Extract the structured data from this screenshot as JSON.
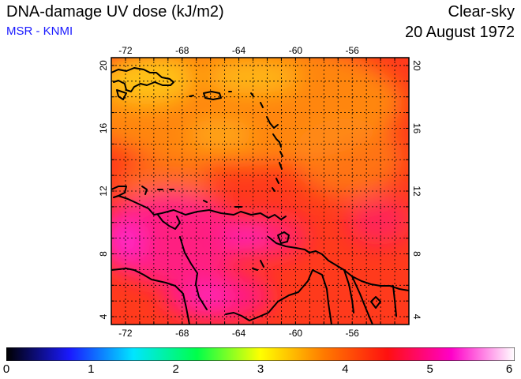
{
  "header": {
    "title": "DNA-damage UV dose (kJ/m2)",
    "credit": "MSR - KNMI",
    "sky_condition": "Clear-sky",
    "date": "20 August 1972"
  },
  "map": {
    "lon_range": [
      -73,
      -52
    ],
    "lat_range": [
      3.5,
      20.5
    ],
    "lon_ticks": [
      {
        "value": -72,
        "label": "-72"
      },
      {
        "value": -68,
        "label": "-68"
      },
      {
        "value": -64,
        "label": "-64"
      },
      {
        "value": -60,
        "label": "-60"
      },
      {
        "value": -56,
        "label": "-56"
      }
    ],
    "lat_ticks": [
      {
        "value": 4,
        "label": "4"
      },
      {
        "value": 8,
        "label": "8"
      },
      {
        "value": 12,
        "label": "12"
      },
      {
        "value": 16,
        "label": "16"
      },
      {
        "value": 20,
        "label": "20"
      }
    ],
    "colors": {
      "base": "#ff3a1c",
      "orange": "#ff8a12",
      "yellow": "#ffc41a",
      "magenta": "#ff1a86",
      "pink": "#ff2ad0",
      "coast": "#000000"
    }
  },
  "colorbar": {
    "min": 0,
    "max": 6,
    "tick_labels": [
      "0",
      "1",
      "2",
      "3",
      "4",
      "5",
      "6"
    ],
    "stops": [
      "#000000",
      "#1a1aff",
      "#00e5ff",
      "#00ff4a",
      "#ffff00",
      "#ff7a00",
      "#ff1010",
      "#ff00c8",
      "#ffffff"
    ]
  }
}
